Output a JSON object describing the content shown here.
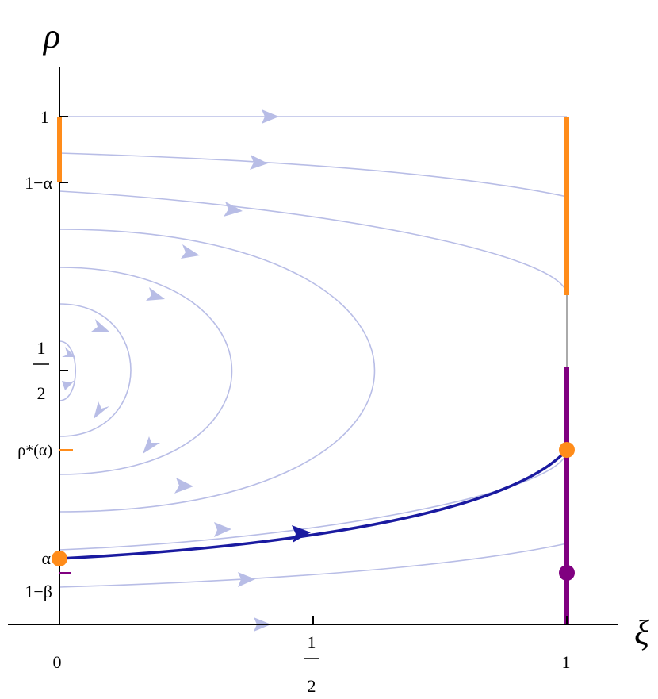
{
  "axes": {
    "y_label": "ρ",
    "x_label": "ξ"
  },
  "y_ticks": {
    "one": "1",
    "one_minus_alpha": "1−α",
    "half": {
      "num": "1",
      "den": "2"
    },
    "rho_star": "ρ*(α)",
    "alpha": "α",
    "one_minus_beta": "1−β"
  },
  "x_ticks": {
    "zero": "0",
    "half": {
      "num": "1",
      "den": "2"
    },
    "one": "1"
  }
}
